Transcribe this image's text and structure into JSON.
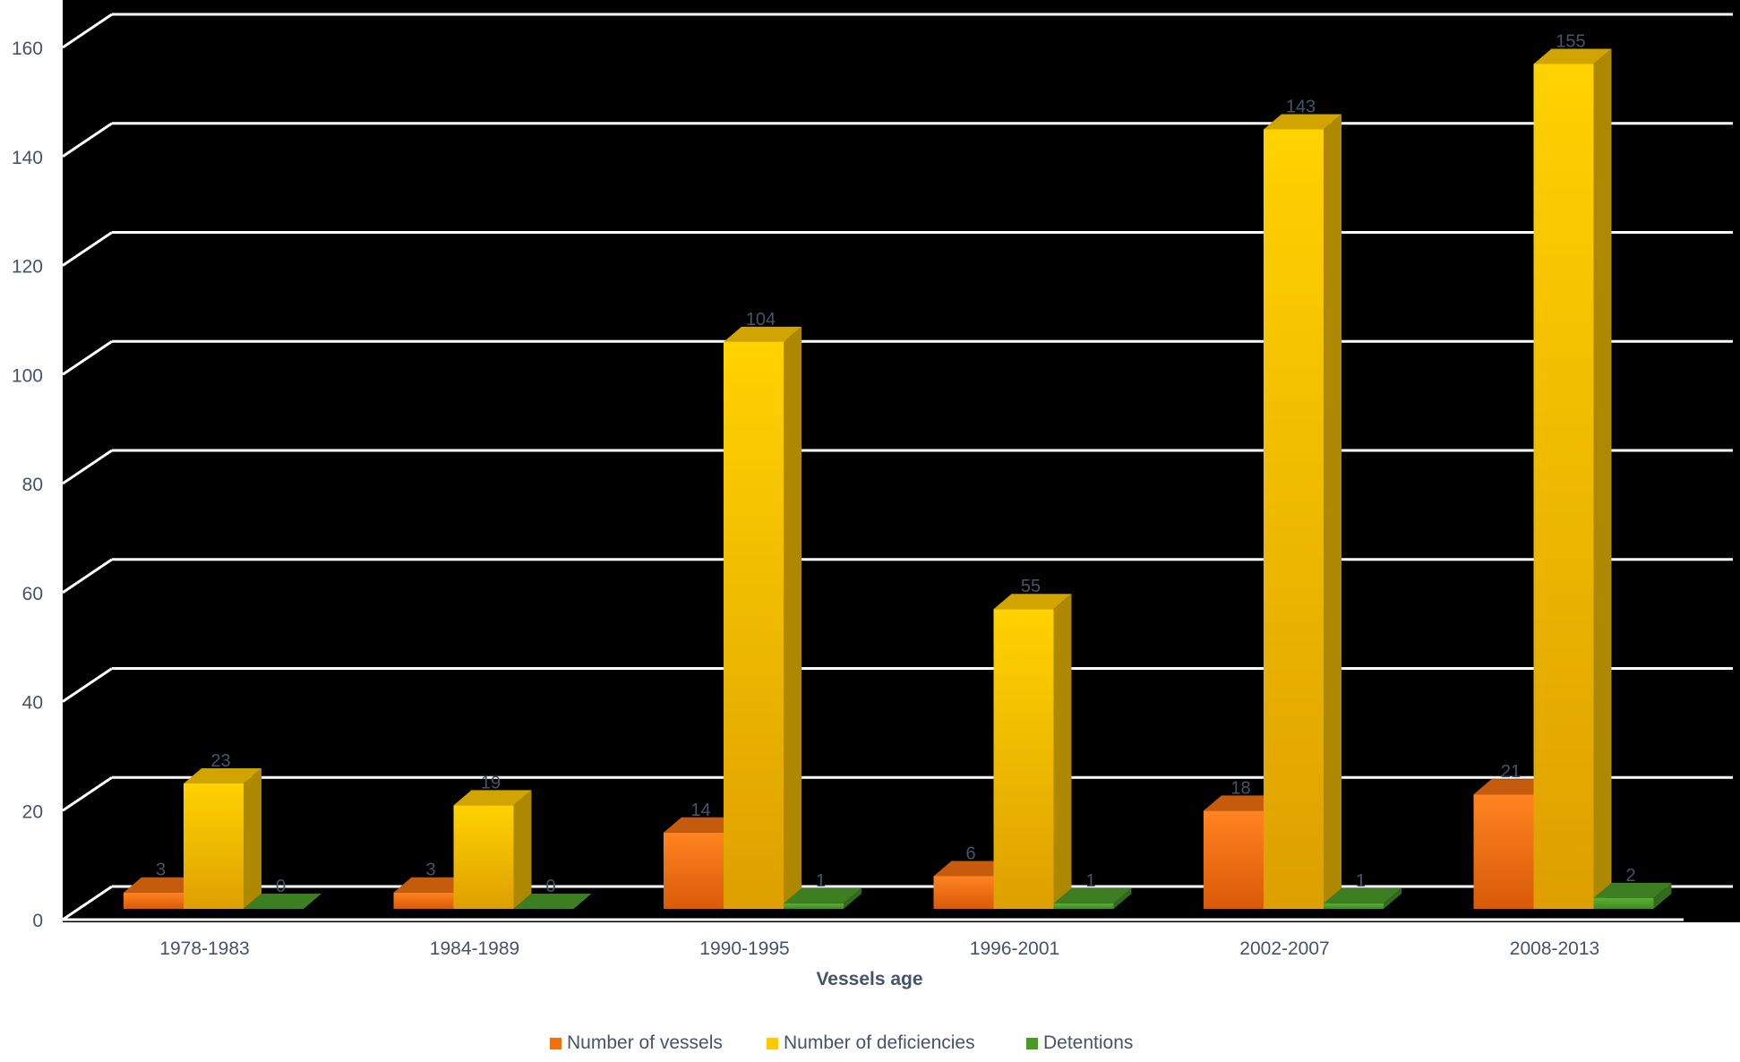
{
  "chart_data": {
    "type": "bar",
    "title": "",
    "xlabel": "Vessels age",
    "ylabel": "",
    "ylim": [
      0,
      160
    ],
    "yticks": [
      0,
      20,
      40,
      60,
      80,
      100,
      120,
      140,
      160
    ],
    "grid": true,
    "three_d": true,
    "legend_position": "bottom",
    "categories": [
      "1978-1983",
      "1984-1989",
      "1990-1995",
      "1996-2001",
      "2002-2007",
      "2008-2013"
    ],
    "series": [
      {
        "name": "Number of  vessels",
        "values": [
          3,
          3,
          14,
          6,
          18,
          21
        ],
        "color": "#F07010"
      },
      {
        "name": "Number of  deficiencies",
        "values": [
          23,
          19,
          104,
          55,
          143,
          155
        ],
        "color": "#FFC800"
      },
      {
        "name": "Detentions",
        "values": [
          0,
          0,
          1,
          1,
          1,
          2
        ],
        "color": "#4A9A2A"
      }
    ],
    "colors": {
      "plot_background": "#000000",
      "gridline": "#FFFFFF",
      "tick_label": "#44546A",
      "data_label": "#44546A"
    }
  }
}
